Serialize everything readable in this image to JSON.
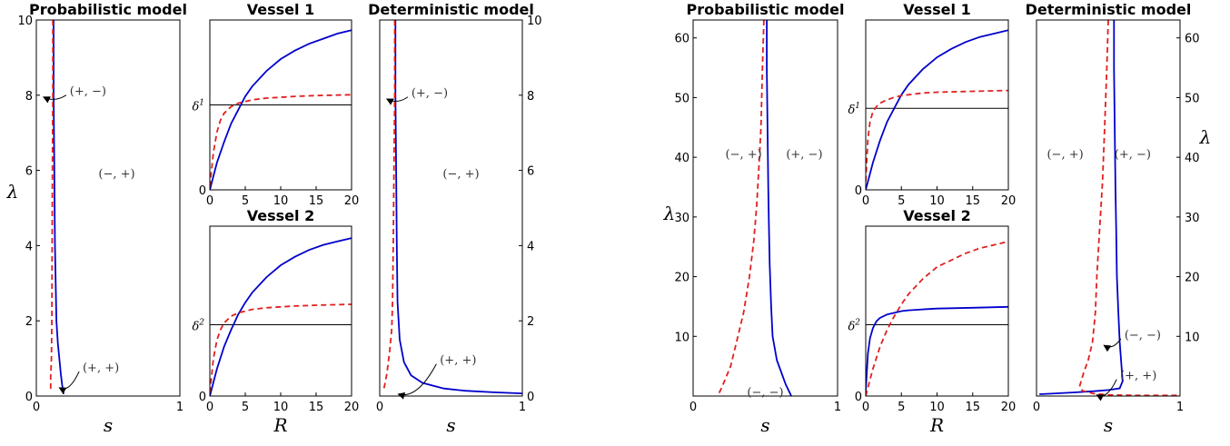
{
  "chart_data": [
    {
      "id": "L-prob",
      "type": "line",
      "title": "Probabilistic model",
      "xlabel": "s",
      "ylabel": "λ",
      "xlim": [
        0,
        1
      ],
      "ylim": [
        0,
        10
      ],
      "xticks": [
        "0",
        "1"
      ],
      "yticks": [
        "0",
        "2",
        "4",
        "6",
        "8",
        "10"
      ],
      "series": [
        {
          "color": "#0000cc",
          "dash": "solid",
          "x": [
            0.12,
            0.12,
            0.125,
            0.13,
            0.135,
            0.14,
            0.15,
            0.16,
            0.17,
            0.18,
            0.19
          ],
          "y": [
            10,
            8,
            6,
            4,
            3,
            2,
            1.4,
            1.0,
            0.6,
            0.3,
            0.05
          ]
        },
        {
          "color": "#e02020",
          "dash": "dashed",
          "x": [
            0.115,
            0.115,
            0.112,
            0.11,
            0.108,
            0.105,
            0.1,
            0.1
          ],
          "y": [
            10,
            8,
            6,
            4,
            2,
            1,
            0.5,
            0.1
          ]
        }
      ],
      "annotations": [
        {
          "text": "(+, −)",
          "tx": 0.36,
          "ty": 8.1,
          "ax": 0.05,
          "ay": 7.95
        },
        {
          "text": "(−, +)",
          "tx": 0.56,
          "ty": 5.9
        },
        {
          "text": "(+, +)",
          "tx": 0.45,
          "ty": 0.75,
          "ax": 0.16,
          "ay": 0.22
        }
      ]
    },
    {
      "id": "L-v1",
      "type": "line",
      "title": "Vessel 1",
      "xlabel": "",
      "ylabel": "",
      "xlim": [
        0,
        20
      ],
      "ylim": [
        0,
        1
      ],
      "xticks": [
        "0",
        "5",
        "10",
        "15",
        "20"
      ],
      "yticks": [
        "0"
      ],
      "ref_value": 0.5,
      "ref_label": "δ",
      "series": [
        {
          "color": "#0000cc",
          "dash": "solid",
          "x": [
            0,
            1,
            2,
            3,
            4,
            5,
            6,
            8,
            10,
            12,
            14,
            16,
            18,
            20
          ],
          "y": [
            0,
            0.16,
            0.28,
            0.39,
            0.47,
            0.55,
            0.61,
            0.7,
            0.77,
            0.82,
            0.86,
            0.89,
            0.92,
            0.94
          ]
        },
        {
          "color": "#e02020",
          "dash": "dashed",
          "x": [
            0,
            0.5,
            1,
            1.5,
            2,
            3,
            4,
            5,
            6,
            8,
            10,
            12,
            15,
            20
          ],
          "y": [
            0.02,
            0.22,
            0.34,
            0.41,
            0.45,
            0.49,
            0.51,
            0.52,
            0.53,
            0.54,
            0.545,
            0.55,
            0.555,
            0.56
          ]
        }
      ]
    },
    {
      "id": "L-v2",
      "type": "line",
      "title": "Vessel 2",
      "xlabel": "R",
      "ylabel": "",
      "xlim": [
        0,
        20
      ],
      "ylim": [
        0,
        1
      ],
      "xticks": [
        "0",
        "5",
        "10",
        "15",
        "20"
      ],
      "yticks": [
        "0"
      ],
      "ref_value": 0.42,
      "ref_label": "δ",
      "series": [
        {
          "color": "#0000cc",
          "dash": "solid",
          "x": [
            0,
            1,
            2,
            3,
            4,
            5,
            6,
            8,
            10,
            12,
            14,
            16,
            18,
            20
          ],
          "y": [
            0,
            0.16,
            0.29,
            0.39,
            0.48,
            0.55,
            0.61,
            0.7,
            0.77,
            0.82,
            0.86,
            0.89,
            0.91,
            0.93
          ]
        },
        {
          "color": "#e02020",
          "dash": "dashed",
          "x": [
            0,
            0.5,
            1,
            1.5,
            2,
            3,
            4,
            5,
            6,
            8,
            10,
            12,
            15,
            20
          ],
          "y": [
            0.02,
            0.22,
            0.33,
            0.39,
            0.43,
            0.47,
            0.49,
            0.5,
            0.51,
            0.52,
            0.525,
            0.53,
            0.535,
            0.54
          ]
        }
      ]
    },
    {
      "id": "L-det",
      "type": "line",
      "title": "Deterministic model",
      "xlabel": "s",
      "ylabel": "",
      "xlim": [
        0,
        1
      ],
      "ylim": [
        0,
        10
      ],
      "xticks": [
        "0",
        "1"
      ],
      "yticks": [
        "0",
        "2",
        "4",
        "6",
        "8",
        "10"
      ],
      "series": [
        {
          "color": "#0000cc",
          "dash": "solid",
          "x": [
            0.11,
            0.11,
            0.115,
            0.12,
            0.125,
            0.14,
            0.17,
            0.22,
            0.3,
            0.45,
            0.6,
            0.8,
            1.0
          ],
          "y": [
            10,
            8,
            6,
            4,
            2.5,
            1.5,
            0.9,
            0.55,
            0.35,
            0.2,
            0.14,
            0.1,
            0.07
          ]
        },
        {
          "color": "#e02020",
          "dash": "dashed",
          "x": [
            0.105,
            0.105,
            0.1,
            0.095,
            0.09,
            0.085,
            0.07,
            0.05,
            0.03
          ],
          "y": [
            10,
            8,
            6,
            4,
            2.5,
            1.8,
            1.2,
            0.6,
            0.2
          ]
        }
      ],
      "annotations": [
        {
          "text": "(+, −)",
          "tx": 0.35,
          "ty": 8.05,
          "ax": 0.05,
          "ay": 7.9
        },
        {
          "text": "(−, +)",
          "tx": 0.57,
          "ty": 5.9
        },
        {
          "text": "(+, +)",
          "tx": 0.55,
          "ty": 0.95,
          "ax": 0.13,
          "ay": 0.05
        }
      ]
    },
    {
      "id": "R-prob",
      "type": "line",
      "title": "Probabilistic model",
      "xlabel": "s",
      "ylabel": "λ",
      "xlim": [
        0,
        1
      ],
      "ylim": [
        0,
        63
      ],
      "xticks": [
        "0",
        "1"
      ],
      "yticks": [
        "10",
        "20",
        "30",
        "40",
        "50",
        "60"
      ],
      "series": [
        {
          "color": "#0000cc",
          "dash": "solid",
          "x": [
            0.51,
            0.51,
            0.515,
            0.52,
            0.525,
            0.53,
            0.54,
            0.55,
            0.58,
            0.61,
            0.64,
            0.67,
            0.68
          ],
          "y": [
            63,
            55,
            45,
            35,
            28,
            22,
            15,
            10,
            6,
            4,
            2,
            0.5,
            0
          ]
        },
        {
          "color": "#e02020",
          "dash": "dashed",
          "x": [
            0.49,
            0.48,
            0.47,
            0.455,
            0.44,
            0.42,
            0.39,
            0.35,
            0.31,
            0.26,
            0.2,
            0.17
          ],
          "y": [
            63,
            55,
            45,
            38,
            32,
            26,
            20,
            14,
            10,
            5,
            1.5,
            0
          ]
        }
      ],
      "annotations": [
        {
          "text": "(−, +)",
          "tx": 0.35,
          "ty": 40.5
        },
        {
          "text": "(+, −)",
          "tx": 0.77,
          "ty": 40.5
        },
        {
          "text": "(−, −)",
          "tx": 0.5,
          "ty": 0.6
        }
      ]
    },
    {
      "id": "R-v1",
      "type": "line",
      "title": "Vessel 1",
      "xlabel": "",
      "ylabel": "",
      "xlim": [
        0,
        20
      ],
      "ylim": [
        0,
        1
      ],
      "xticks": [
        "0",
        "5",
        "10",
        "15",
        "20"
      ],
      "yticks": [
        "0"
      ],
      "ref_value": 0.48,
      "ref_label": "δ",
      "series": [
        {
          "color": "#0000cc",
          "dash": "solid",
          "x": [
            0,
            1,
            2,
            3,
            4,
            5,
            6,
            8,
            10,
            12,
            14,
            16,
            18,
            20
          ],
          "y": [
            0,
            0.16,
            0.29,
            0.4,
            0.48,
            0.56,
            0.62,
            0.71,
            0.78,
            0.83,
            0.87,
            0.9,
            0.92,
            0.94
          ]
        },
        {
          "color": "#e02020",
          "dash": "dashed",
          "x": [
            0,
            0.3,
            0.6,
            1,
            1.5,
            2,
            3,
            4,
            5,
            6,
            8,
            10,
            15,
            20
          ],
          "y": [
            0.05,
            0.3,
            0.4,
            0.46,
            0.49,
            0.51,
            0.53,
            0.545,
            0.555,
            0.56,
            0.57,
            0.575,
            0.58,
            0.585
          ]
        }
      ]
    },
    {
      "id": "R-v2",
      "type": "line",
      "title": "Vessel 2",
      "xlabel": "R",
      "ylabel": "",
      "xlim": [
        0,
        20
      ],
      "ylim": [
        0,
        1
      ],
      "xticks": [
        "0",
        "5",
        "10",
        "15",
        "20"
      ],
      "yticks": [
        "0"
      ],
      "ref_value": 0.42,
      "ref_label": "δ",
      "series": [
        {
          "color": "#0000cc",
          "dash": "solid",
          "x": [
            0,
            0.3,
            0.6,
            1,
            1.5,
            2,
            3,
            4,
            5,
            6,
            8,
            10,
            15,
            20
          ],
          "y": [
            0.03,
            0.25,
            0.34,
            0.4,
            0.44,
            0.46,
            0.48,
            0.49,
            0.5,
            0.505,
            0.51,
            0.515,
            0.52,
            0.525
          ]
        },
        {
          "color": "#e02020",
          "dash": "dashed",
          "x": [
            0,
            1,
            2,
            3,
            4,
            5,
            6,
            8,
            10,
            12,
            14,
            16,
            18,
            20
          ],
          "y": [
            0,
            0.16,
            0.29,
            0.39,
            0.47,
            0.54,
            0.6,
            0.69,
            0.76,
            0.8,
            0.84,
            0.87,
            0.89,
            0.91
          ]
        }
      ]
    },
    {
      "id": "R-det",
      "type": "line",
      "title": "Deterministic model",
      "xlabel": "s",
      "ylabel": "λ",
      "xlim": [
        0,
        1
      ],
      "ylim": [
        0,
        63
      ],
      "xticks": [
        "0",
        "1"
      ],
      "yticks": [
        "10",
        "20",
        "30",
        "40",
        "50",
        "60"
      ],
      "series": [
        {
          "color": "#0000cc",
          "dash": "solid",
          "x": [
            0.54,
            0.54,
            0.545,
            0.55,
            0.555,
            0.56,
            0.57,
            0.58,
            0.6,
            0.58,
            0.5,
            0.4,
            0.25,
            0.1,
            0.02
          ],
          "y": [
            63,
            55,
            45,
            35,
            28,
            20,
            14,
            9,
            2.5,
            1.3,
            1.0,
            0.8,
            0.6,
            0.4,
            0.3
          ]
        },
        {
          "color": "#e02020",
          "dash": "dashed",
          "x": [
            0.5,
            0.49,
            0.475,
            0.46,
            0.44,
            0.42,
            0.41,
            0.39,
            0.36,
            0.33,
            0.3,
            0.32,
            0.4,
            0.5,
            0.7,
            1.0
          ],
          "y": [
            63,
            55,
            45,
            36,
            28,
            20,
            14,
            9,
            6,
            4,
            1.6,
            0.9,
            0.4,
            0.2,
            0.1,
            0.1
          ]
        }
      ],
      "annotations": [
        {
          "text": "(−, +)",
          "tx": 0.2,
          "ty": 40.5
        },
        {
          "text": "(+, −)",
          "tx": 0.67,
          "ty": 40.5
        },
        {
          "text": "(−, −)",
          "tx": 0.74,
          "ty": 10.2,
          "ax": 0.47,
          "ay": 8.5
        },
        {
          "text": "(+, +)",
          "tx": 0.71,
          "ty": 3.4,
          "ax": 0.42,
          "ay": 0.2
        }
      ]
    }
  ]
}
